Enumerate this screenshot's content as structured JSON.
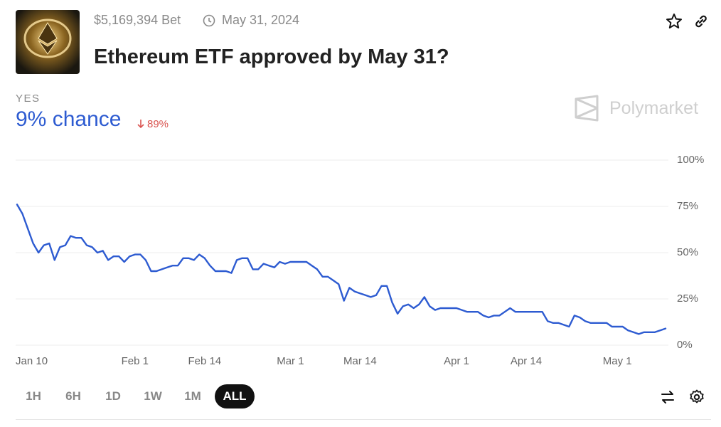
{
  "header": {
    "volume": "$5,169,394 Bet",
    "end_date": "May 31, 2024",
    "title": "Ethereum ETF approved by May 31?"
  },
  "outcome": {
    "label": "YES",
    "chance": "9% chance",
    "change": "89%"
  },
  "brand": "Polymarket",
  "controls": {
    "ranges": [
      "1H",
      "6H",
      "1D",
      "1W",
      "1M",
      "ALL"
    ]
  },
  "chart_data": {
    "type": "line",
    "categories": [
      "Jan 10",
      null,
      null,
      null,
      null,
      null,
      null,
      null,
      null,
      null,
      null,
      null,
      null,
      null,
      null,
      null,
      null,
      null,
      null,
      null,
      null,
      null,
      "Feb 1",
      null,
      null,
      null,
      null,
      null,
      null,
      null,
      null,
      null,
      null,
      null,
      null,
      "Feb 14",
      null,
      null,
      null,
      null,
      null,
      null,
      null,
      null,
      null,
      null,
      null,
      null,
      null,
      null,
      null,
      "Mar 1",
      null,
      null,
      null,
      null,
      null,
      null,
      null,
      null,
      null,
      null,
      null,
      null,
      "Mar 14",
      null,
      null,
      null,
      null,
      null,
      null,
      null,
      null,
      null,
      null,
      null,
      null,
      null,
      null,
      null,
      null,
      null,
      "Apr 1",
      null,
      null,
      null,
      null,
      null,
      null,
      null,
      null,
      null,
      null,
      null,
      null,
      "Apr 14",
      null,
      null,
      null,
      null,
      null,
      null,
      null,
      null,
      null,
      null,
      null,
      null,
      null,
      null,
      null,
      null,
      "May 1",
      null,
      null,
      null,
      null,
      null,
      null,
      null,
      null,
      null
    ],
    "series": [
      {
        "color": "#2d5bd1",
        "values": [
          76,
          71,
          63,
          55,
          50,
          54,
          55,
          46,
          53,
          54,
          59,
          58,
          58,
          54,
          53,
          50,
          51,
          46,
          48,
          48,
          45,
          48,
          49,
          49,
          46,
          40,
          40,
          41,
          42,
          43,
          43,
          47,
          47,
          46,
          49,
          47,
          43,
          40,
          40,
          40,
          39,
          46,
          47,
          47,
          41,
          41,
          44,
          43,
          42,
          45,
          44,
          45,
          45,
          45,
          45,
          43,
          41,
          37,
          37,
          35,
          33,
          24,
          31,
          29,
          28,
          27,
          26,
          27,
          32,
          32,
          23,
          17,
          21,
          22,
          20,
          22,
          26,
          21,
          19,
          20,
          20,
          20,
          20,
          19,
          18,
          18,
          18,
          16,
          15,
          16,
          16,
          18,
          20,
          18,
          18,
          18,
          18,
          18,
          18,
          13,
          12,
          12,
          11,
          10,
          16,
          15,
          13,
          12,
          12,
          12,
          12,
          10,
          10,
          10,
          8,
          7,
          6,
          7,
          7,
          7,
          8,
          9
        ]
      }
    ],
    "ylim": [
      0,
      100
    ],
    "yticks": [
      {
        "value": 0,
        "label": "0%"
      },
      {
        "value": 25,
        "label": "25%"
      },
      {
        "value": 50,
        "label": "50%"
      },
      {
        "value": 75,
        "label": "75%"
      },
      {
        "value": 100,
        "label": "100%"
      }
    ],
    "grid": true
  }
}
